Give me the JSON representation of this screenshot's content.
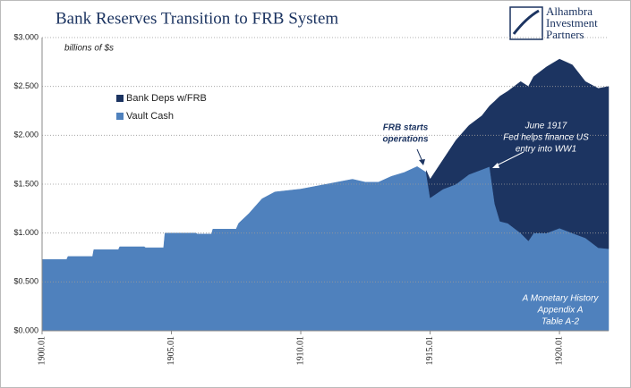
{
  "chart_data": {
    "type": "stacked_area",
    "title": "Bank Reserves Transition to FRB System",
    "y_label": "billions of $s",
    "logo": [
      "Alhambra",
      "Investment",
      "Partners"
    ],
    "annotations": [
      {
        "lines": [
          "FRB starts",
          "operations"
        ]
      },
      {
        "lines": [
          "June 1917",
          "Fed helps finance US",
          "entry into WW1"
        ]
      },
      {
        "lines": [
          "A Monetary History",
          "Appendix A",
          "Table A-2"
        ]
      }
    ],
    "x": [
      1900.0,
      1900.95,
      1901.0,
      1901.95,
      1902.0,
      1902.95,
      1903.0,
      1903.95,
      1904.0,
      1904.7,
      1904.75,
      1905.95,
      1906.0,
      1906.55,
      1906.6,
      1907.5,
      1907.6,
      1908.0,
      1908.5,
      1909.0,
      1910.0,
      1911.0,
      1912.0,
      1912.5,
      1913.0,
      1913.5,
      1914.0,
      1914.5,
      1914.85,
      1915.0,
      1915.5,
      1916.0,
      1916.5,
      1917.0,
      1917.3,
      1917.5,
      1917.7,
      1918.0,
      1918.5,
      1918.8,
      1919.0,
      1919.5,
      1920.0,
      1920.5,
      1921.0,
      1921.5,
      1921.9
    ],
    "series": [
      {
        "name": "Vault Cash",
        "color": "#4f81bd",
        "values": [
          0.73,
          0.73,
          0.76,
          0.76,
          0.83,
          0.83,
          0.86,
          0.86,
          0.85,
          0.85,
          1.0,
          1.0,
          0.99,
          0.99,
          1.04,
          1.04,
          1.1,
          1.2,
          1.35,
          1.42,
          1.45,
          1.5,
          1.55,
          1.52,
          1.52,
          1.58,
          1.62,
          1.68,
          1.62,
          1.36,
          1.45,
          1.5,
          1.6,
          1.65,
          1.68,
          1.3,
          1.12,
          1.1,
          1.0,
          0.92,
          1.0,
          1.0,
          1.05,
          1.0,
          0.95,
          0.85,
          0.84
        ]
      },
      {
        "name": "Bank Deps w/FRB",
        "color": "#1c3461",
        "values": [
          null,
          null,
          null,
          null,
          null,
          null,
          null,
          null,
          null,
          null,
          null,
          null,
          null,
          null,
          null,
          null,
          null,
          null,
          null,
          null,
          null,
          null,
          null,
          null,
          null,
          null,
          null,
          null,
          0.02,
          0.19,
          0.3,
          0.45,
          0.5,
          0.55,
          0.62,
          1.05,
          1.28,
          1.35,
          1.55,
          1.58,
          1.6,
          1.7,
          1.73,
          1.72,
          1.6,
          1.63,
          1.66
        ]
      }
    ],
    "xlim": [
      1900.0,
      1921.9
    ],
    "xticks": [
      {
        "value": 1900.0,
        "label": "1900.01"
      },
      {
        "value": 1905.0,
        "label": "1905.01"
      },
      {
        "value": 1910.0,
        "label": "1910.01"
      },
      {
        "value": 1915.0,
        "label": "1915.01"
      },
      {
        "value": 1920.0,
        "label": "1920.01"
      }
    ],
    "ylim": [
      0,
      3
    ],
    "yticks": [
      {
        "value": 0,
        "label": "$0.000"
      },
      {
        "value": 0.5,
        "label": "$0.500"
      },
      {
        "value": 1,
        "label": "$1.000"
      },
      {
        "value": 1.5,
        "label": "$1.500"
      },
      {
        "value": 2,
        "label": "$2.000"
      },
      {
        "value": 2.5,
        "label": "$2.500"
      },
      {
        "value": 3,
        "label": "$3.000"
      }
    ],
    "grid": true
  }
}
